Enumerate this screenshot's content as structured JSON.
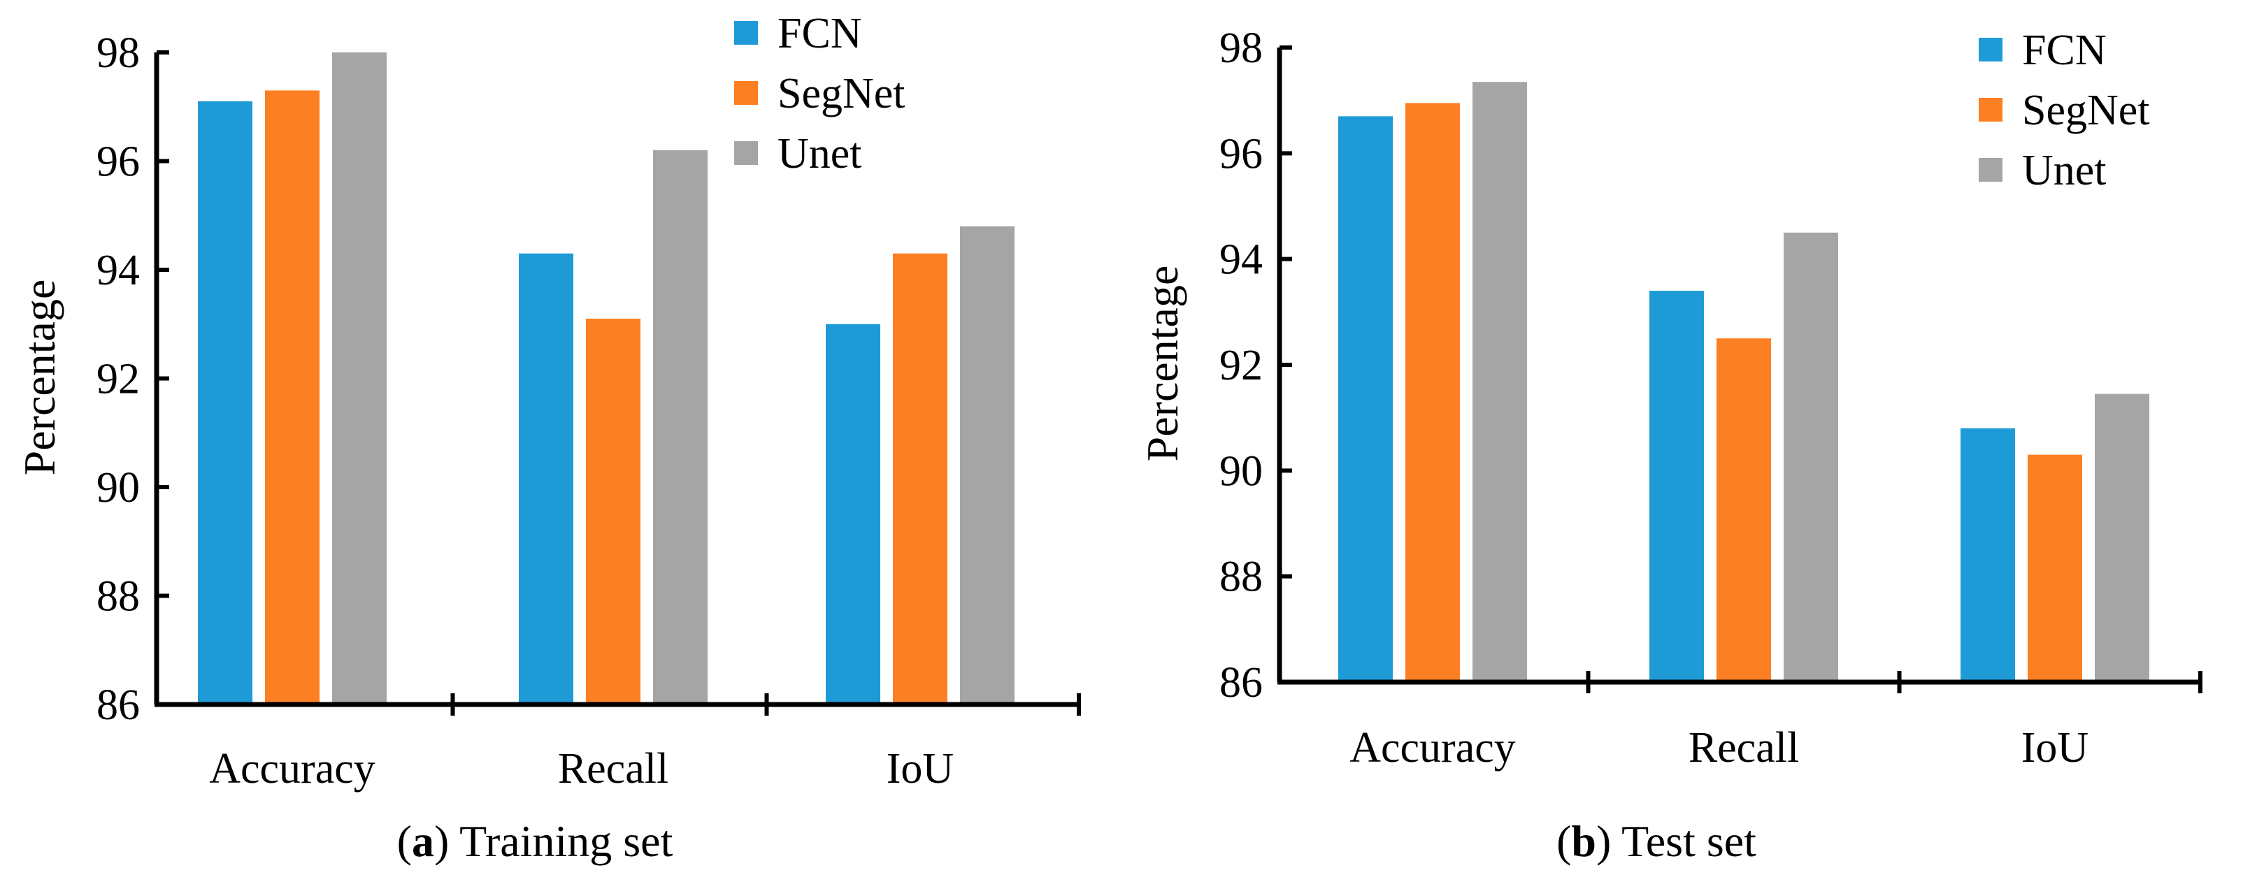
{
  "chart_data": [
    {
      "type": "bar",
      "categories": [
        "Accuracy",
        "Recall",
        "IoU"
      ],
      "series": [
        {
          "name": "FCN",
          "color": "#1E9BD7",
          "values": [
            97.1,
            94.3,
            93.0
          ]
        },
        {
          "name": "SegNet",
          "color": "#FD7F23",
          "values": [
            97.3,
            93.1,
            94.3
          ]
        },
        {
          "name": "Unet",
          "color": "#A5A5A5",
          "values": [
            98.0,
            96.2,
            94.8
          ]
        }
      ],
      "ylabel": "Percentage",
      "ylim": [
        86,
        98
      ],
      "yticks": [
        86,
        88,
        90,
        92,
        94,
        96,
        98
      ],
      "grid": false,
      "legend": "top-right",
      "caption": {
        "letter": "a",
        "text": "Training set"
      }
    },
    {
      "type": "bar",
      "categories": [
        "Accuracy",
        "Recall",
        "IoU"
      ],
      "series": [
        {
          "name": "FCN",
          "color": "#1E9BD7",
          "values": [
            96.7,
            93.4,
            90.8
          ]
        },
        {
          "name": "SegNet",
          "color": "#FD7F23",
          "values": [
            96.95,
            92.5,
            90.3
          ]
        },
        {
          "name": "Unet",
          "color": "#A5A5A5",
          "values": [
            97.35,
            94.5,
            91.45
          ]
        }
      ],
      "ylabel": "Percentage",
      "ylim": [
        86,
        98
      ],
      "yticks": [
        86,
        88,
        90,
        92,
        94,
        96,
        98
      ],
      "grid": false,
      "legend": "top-right",
      "caption": {
        "letter": "b",
        "text": "Test set"
      }
    }
  ]
}
